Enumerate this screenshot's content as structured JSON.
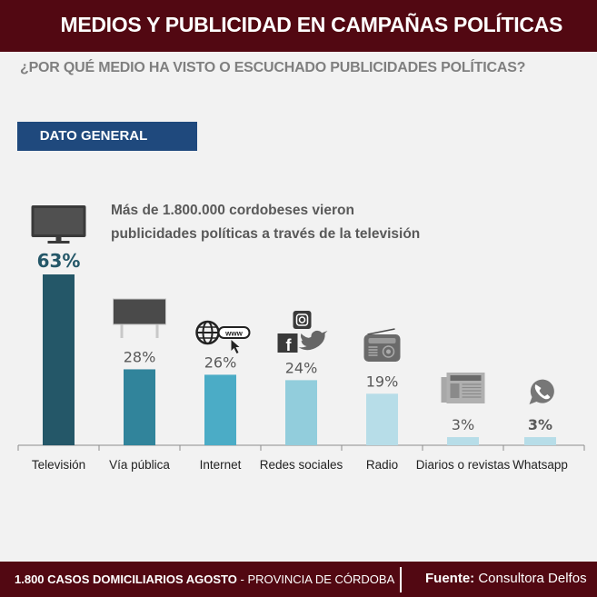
{
  "header": {
    "title": "MEDIOS Y PUBLICIDAD EN CAMPAÑAS POLÍTICAS"
  },
  "question": "¿POR QUÉ MEDIO HA VISTO O ESCUCHADO PUBLICIDADES POLÍTICAS?",
  "badge": "DATO GENERAL",
  "callout": {
    "line1": "Más de 1.800.000 cordobeses vieron",
    "line2": "publicidades políticas a través de la televisión"
  },
  "footer": {
    "sample_bold": "1.800  CASOS DOMICILIARIOS AGOSTO",
    "sample_rest": " - PROVINCIA DE CÓRDOBA",
    "source_label": "Fuente:",
    "source_value": " Consultora Delfos"
  },
  "chart_data": {
    "type": "bar",
    "title": "¿POR QUÉ MEDIO HA VISTO O ESCUCHADO PUBLICIDADES POLÍTICAS?",
    "xlabel": "",
    "ylabel": "",
    "ylim": [
      0,
      63
    ],
    "grid": false,
    "categories": [
      "Televisión",
      "Vía pública",
      "Internet",
      "Redes sociales",
      "Radio",
      "Diarios o revistas",
      "Whatsapp"
    ],
    "values": [
      63,
      28,
      26,
      24,
      19,
      3,
      3
    ],
    "data_labels": [
      "63%",
      "28%",
      "26%",
      "24%",
      "19%",
      "3%",
      "3%"
    ],
    "icons": [
      "tv-icon",
      "billboard-icon",
      "www-globe-icon",
      "social-media-icon",
      "radio-icon",
      "newspaper-icon",
      "whatsapp-icon"
    ],
    "colors": [
      "#245768",
      "#31849b",
      "#4bacc6",
      "#92cddc",
      "#b7dde8",
      "#b7dde8",
      "#b7dde8"
    ],
    "label_colors": [
      "#245768",
      "#595959",
      "#595959",
      "#595959",
      "#595959",
      "#595959",
      "#595959"
    ]
  }
}
